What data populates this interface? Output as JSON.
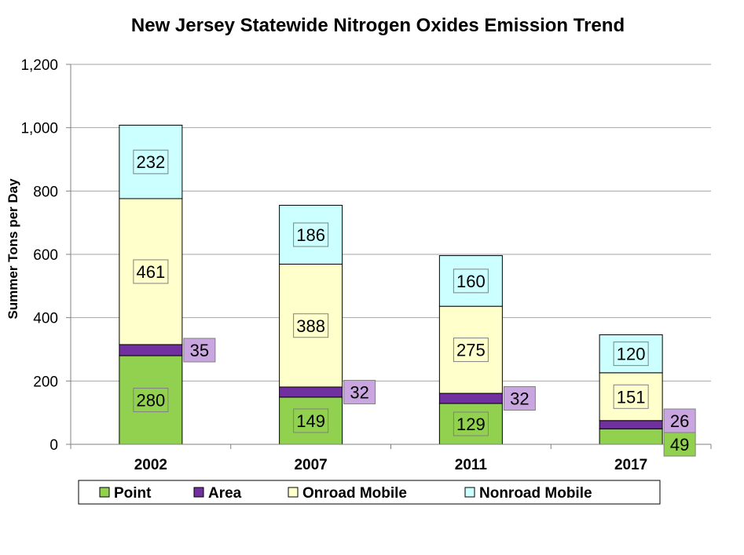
{
  "chart_data": {
    "type": "bar",
    "stacked": true,
    "title": "New Jersey Statewide Nitrogen Oxides Emission Trend",
    "xlabel": "",
    "ylabel": "Summer Tons per Day",
    "ylim": [
      0,
      1200
    ],
    "yticks": [
      0,
      200,
      400,
      600,
      800,
      1000,
      1200
    ],
    "ytick_labels": [
      "0",
      "200",
      "400",
      "600",
      "800",
      "1,000",
      "1,200"
    ],
    "grid": true,
    "legend_position": "bottom",
    "categories": [
      "2002",
      "2007",
      "2011",
      "2017"
    ],
    "series": [
      {
        "name": "Point",
        "color": "#92d050",
        "values": [
          280,
          149,
          129,
          49
        ]
      },
      {
        "name": "Area",
        "color": "#7030a0",
        "values": [
          35,
          32,
          32,
          26
        ]
      },
      {
        "name": "Onroad Mobile",
        "color": "#ffffcc",
        "values": [
          461,
          388,
          275,
          151
        ]
      },
      {
        "name": "Nonroad Mobile",
        "color": "#ccffff",
        "values": [
          232,
          186,
          160,
          120
        ]
      }
    ],
    "label_colors": {
      "Point": "#92d050",
      "Area": "#c9a6e0",
      "Onroad Mobile": "#ffffcc",
      "Nonroad Mobile": "#ccffff"
    }
  }
}
